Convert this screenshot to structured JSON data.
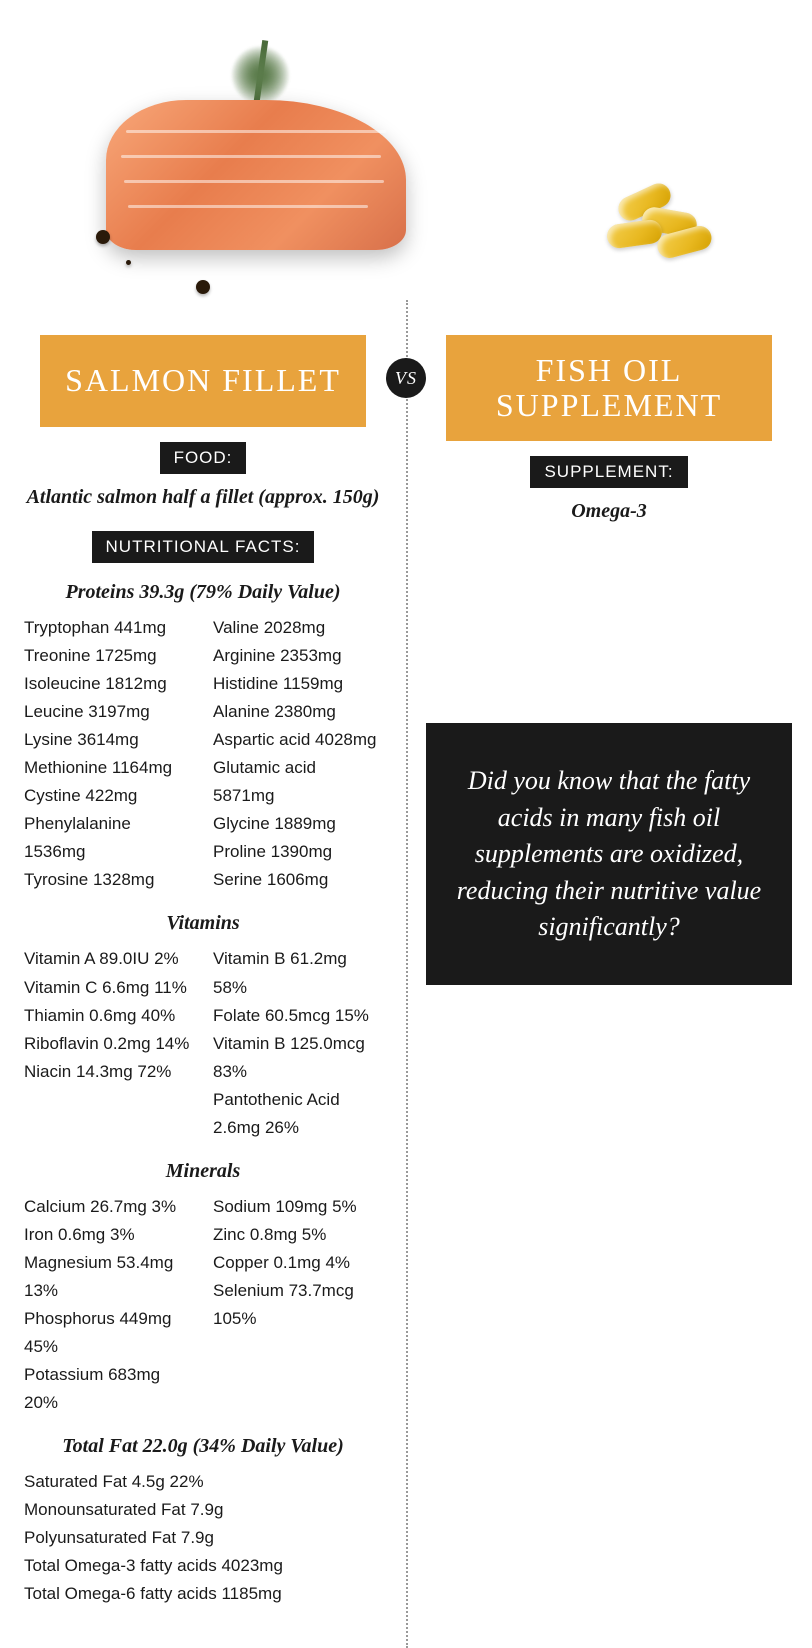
{
  "vs_label": "VS",
  "left": {
    "title": "SALMON FILLET",
    "food_label": "FOOD:",
    "food_subtitle": "Atlantic salmon half a fillet (approx. 150g)",
    "facts_label": "NUTRITIONAL FACTS:",
    "proteins_heading": "Proteins 39.3g (79% Daily Value)",
    "proteins_col1": [
      "Tryptophan 441mg",
      "Treonine 1725mg",
      "Isoleucine 1812mg",
      "Leucine 3197mg",
      "Lysine 3614mg",
      "Methionine 1164mg",
      "Cystine 422mg",
      "Phenylalanine 1536mg",
      "Tyrosine 1328mg"
    ],
    "proteins_col2": [
      "Valine 2028mg",
      "Arginine 2353mg",
      "Histidine 1159mg",
      "Alanine 2380mg",
      "Aspartic acid 4028mg",
      "Glutamic acid 5871mg",
      "Glycine 1889mg",
      "Proline 1390mg",
      "Serine 1606mg"
    ],
    "vitamins_heading": "Vitamins",
    "vitamins_col1": [
      "Vitamin A 89.0IU 2%",
      "Vitamin C 6.6mg 11%",
      "Thiamin 0.6mg 40%",
      "Riboflavin 0.2mg 14%",
      "Niacin 14.3mg 72%"
    ],
    "vitamins_col2": [
      "Vitamin B 61.2mg 58%",
      "Folate 60.5mcg 15%",
      "Vitamin B 125.0mcg 83%",
      "Pantothenic Acid 2.6mg 26%"
    ],
    "minerals_heading": "Minerals",
    "minerals_col1": [
      "Calcium 26.7mg 3%",
      "Iron 0.6mg 3%",
      "Magnesium 53.4mg 13%",
      "Phosphorus 449mg 45%",
      "Potassium 683mg 20%"
    ],
    "minerals_col2": [
      "Sodium 109mg 5%",
      "Zinc 0.8mg 5%",
      "Copper 0.1mg 4%",
      "Selenium 73.7mcg 105%"
    ],
    "fat_heading": "Total Fat 22.0g (34% Daily Value)",
    "fat_list": [
      "Saturated Fat 4.5g 22%",
      "Monounsaturated Fat 7.9g",
      "Polyunsaturated Fat 7.9g",
      "Total Omega-3 fatty acids 4023mg",
      "Total Omega-6 fatty acids 1185mg"
    ]
  },
  "right": {
    "title": "FISH OIL SUPPLEMENT",
    "supp_label": "SUPPLEMENT:",
    "supp_subtitle": "Omega-3",
    "callout": "Did you know that the fatty acids in many fish oil supplements are oxidized, reducing their nutritive value significantly?"
  },
  "style": {
    "title_bg": "#e8a33d",
    "title_color": "#ffffff",
    "pill_bg": "#1a1a1a",
    "pill_color": "#ffffff",
    "body_font_size": 17,
    "heading_font_size": 20,
    "title_font_size": 32,
    "callout_font_size": 26,
    "divider_style": "dotted",
    "divider_color": "#999999"
  }
}
